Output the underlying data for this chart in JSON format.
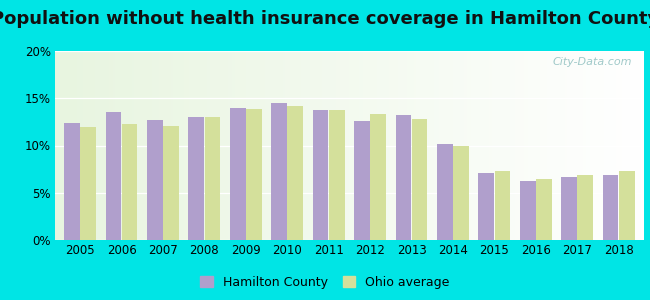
{
  "title": "Population without health insurance coverage in Hamilton County",
  "years": [
    2005,
    2006,
    2007,
    2008,
    2009,
    2010,
    2011,
    2012,
    2013,
    2014,
    2015,
    2016,
    2017,
    2018
  ],
  "hamilton": [
    12.4,
    13.5,
    12.7,
    13.0,
    14.0,
    14.5,
    13.8,
    12.6,
    13.2,
    10.2,
    7.1,
    6.2,
    6.7,
    6.9
  ],
  "ohio": [
    12.0,
    12.3,
    12.1,
    13.0,
    13.9,
    14.2,
    13.8,
    13.3,
    12.8,
    10.0,
    7.3,
    6.5,
    6.9,
    7.3
  ],
  "hamilton_color": "#b09fcc",
  "ohio_color": "#d4e09b",
  "background_outer": "#00e5e5",
  "title_fontsize": 13,
  "ylim": [
    0,
    20
  ],
  "yticks": [
    0,
    5,
    10,
    15,
    20
  ],
  "ytick_labels": [
    "0%",
    "5%",
    "10%",
    "15%",
    "20%"
  ],
  "watermark": "City-Data.com"
}
